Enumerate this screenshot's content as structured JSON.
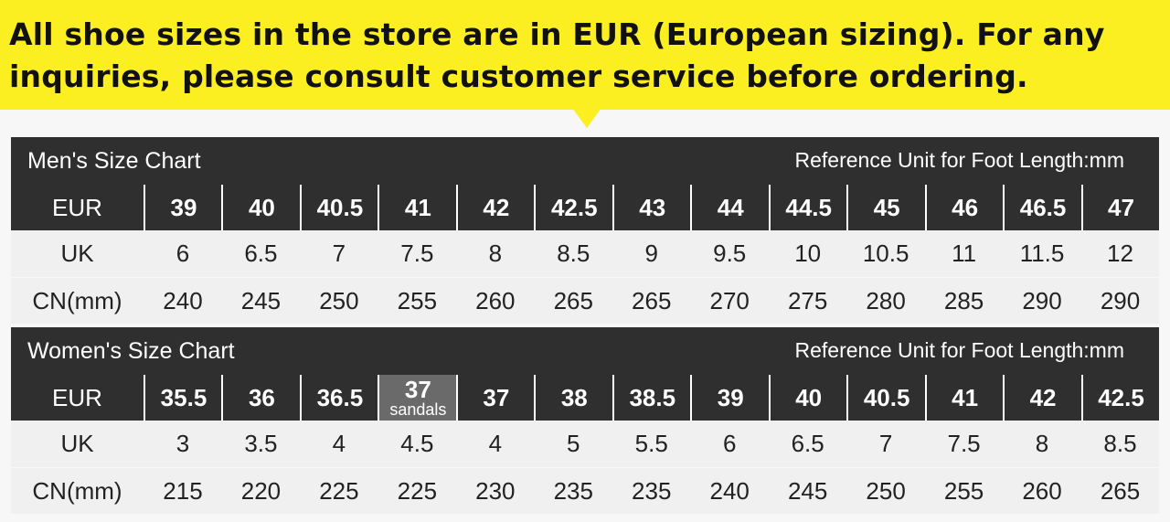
{
  "banner": {
    "lines": [
      "All shoe sizes in the store are in EUR (European sizing). For any",
      "inquiries, please consult customer service before ordering."
    ]
  },
  "tables": [
    {
      "title": "Men's Size Chart",
      "unit_note": "Reference Unit for Foot Length:mm",
      "rows": [
        {
          "label": "EUR",
          "cells": [
            "39",
            "40",
            "40.5",
            "41",
            "42",
            "42.5",
            "43",
            "44",
            "44.5",
            "45",
            "46",
            "46.5",
            "47"
          ]
        },
        {
          "label": "UK",
          "cells": [
            "6",
            "6.5",
            "7",
            "7.5",
            "8",
            "8.5",
            "9",
            "9.5",
            "10",
            "10.5",
            "11",
            "11.5",
            "12"
          ]
        },
        {
          "label": "CN(mm)",
          "cells": [
            "240",
            "245",
            "250",
            "255",
            "260",
            "265",
            "265",
            "270",
            "275",
            "280",
            "285",
            "290",
            "290"
          ]
        }
      ]
    },
    {
      "title": "Women's Size Chart",
      "unit_note": "Reference Unit for Foot Length:mm",
      "rows": [
        {
          "label": "EUR",
          "cells": [
            "35.5",
            "36",
            "36.5",
            {
              "value": "37",
              "note": "sandals"
            },
            "37",
            "38",
            "38.5",
            "39",
            "40",
            "40.5",
            "41",
            "42",
            "42.5"
          ]
        },
        {
          "label": "UK",
          "cells": [
            "3",
            "3.5",
            "4",
            "4.5",
            "4",
            "5",
            "5.5",
            "6",
            "6.5",
            "7",
            "7.5",
            "8",
            "8.5"
          ]
        },
        {
          "label": "CN(mm)",
          "cells": [
            "215",
            "220",
            "225",
            "225",
            "230",
            "235",
            "235",
            "240",
            "245",
            "250",
            "255",
            "260",
            "265"
          ]
        }
      ]
    }
  ]
}
